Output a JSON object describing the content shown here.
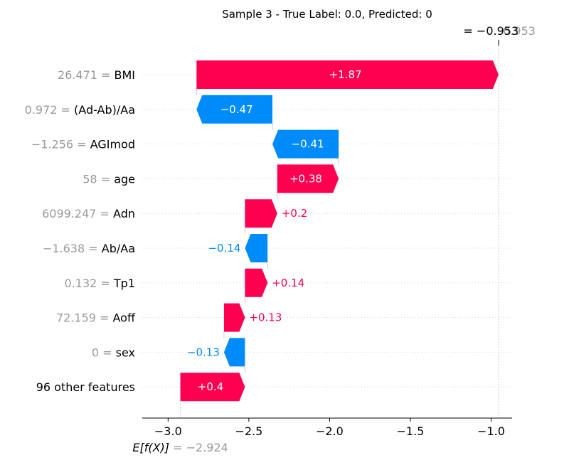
{
  "chart_data": {
    "type": "waterfall",
    "title": "Sample 3 - True Label: 0.0, Predicted: 0",
    "base_value": -2.924,
    "base_value_label": "= −2.924",
    "base_value_name": "E[f(X)]",
    "output_value": -0.953,
    "output_value_label": "= −0.953",
    "output_value_ghost_label": "0.953",
    "xlim": [
      -3.16,
      -0.87
    ],
    "xticks": [
      -3.0,
      -2.5,
      -2.0,
      -1.5,
      -1.0
    ],
    "xtick_labels": [
      "−3.0",
      "−2.5",
      "−2.0",
      "−1.5",
      "−1.0"
    ],
    "colors": {
      "positive": "#ff0051",
      "negative": "#008bfb",
      "value_text": "#999999"
    },
    "features": [
      {
        "value": "26.471",
        "name": "BMI",
        "contribution": 1.87,
        "label": "+1.87"
      },
      {
        "value": "0.972",
        "name": "(Ad-Ab)/Aa",
        "contribution": -0.47,
        "label": "−0.47"
      },
      {
        "value": "−1.256",
        "name": "AGImod",
        "contribution": -0.41,
        "label": "−0.41"
      },
      {
        "value": "58",
        "name": "age",
        "contribution": 0.38,
        "label": "+0.38"
      },
      {
        "value": "6099.247",
        "name": "Adn",
        "contribution": 0.2,
        "label": "+0.2"
      },
      {
        "value": "−1.638",
        "name": "Ab/Aa",
        "contribution": -0.14,
        "label": "−0.14"
      },
      {
        "value": "0.132",
        "name": "Tp1",
        "contribution": 0.14,
        "label": "+0.14"
      },
      {
        "value": "72.159",
        "name": "Aoff",
        "contribution": 0.13,
        "label": "+0.13"
      },
      {
        "value": "0",
        "name": "sex",
        "contribution": -0.13,
        "label": "−0.13"
      },
      {
        "value": "",
        "name": "96 other features",
        "contribution": 0.4,
        "label": "+0.4"
      }
    ]
  }
}
